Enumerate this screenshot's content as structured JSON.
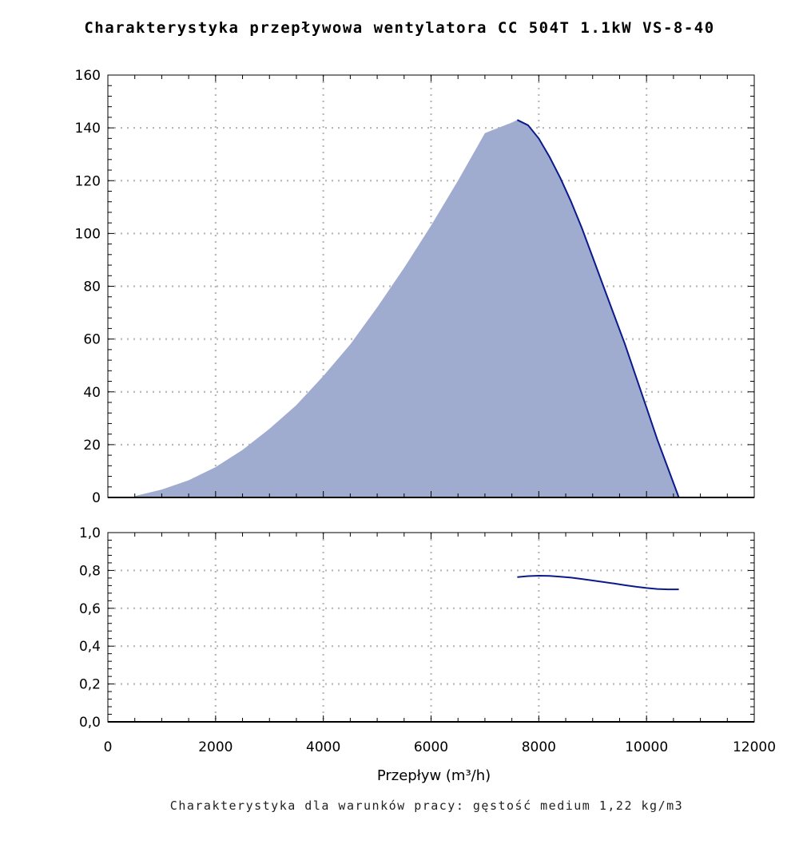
{
  "title": "Charakterystyka przepływowa wentylatora CC 504T 1.1kW VS-8-40",
  "footnote": "Charakterystyka dla warunków pracy: gęstość medium 1,22 kg/m3",
  "colors": {
    "fill": "#9fabcf",
    "line": "#0b1a8a",
    "grid": "#b8b8b8"
  },
  "chart_data": [
    {
      "type": "area",
      "ylim": [
        0,
        160
      ],
      "xlim": [
        0,
        12000
      ],
      "y_ticks": [
        "0",
        "20",
        "40",
        "60",
        "80",
        "100",
        "120",
        "140",
        "160"
      ],
      "y_tick_values": [
        0,
        20,
        40,
        60,
        80,
        100,
        120,
        140,
        160
      ],
      "grid": true,
      "series": [
        {
          "x": [
            500,
            1000,
            1500,
            2000,
            2500,
            3000,
            3500,
            4000,
            4500,
            5000,
            5500,
            6000,
            6500,
            7000,
            7500,
            7600,
            7800,
            8000,
            8200,
            8400,
            8600,
            8800,
            9000,
            9200,
            9400,
            9600,
            9800,
            10000,
            10200,
            10400,
            10600
          ],
          "y": [
            0.5,
            3,
            6.5,
            11.5,
            18,
            26,
            35,
            46,
            58,
            72,
            87,
            103,
            120,
            138,
            142,
            143,
            141,
            136,
            129,
            121,
            112,
            102,
            91,
            80,
            69,
            58,
            46,
            34,
            22,
            11,
            0
          ]
        }
      ]
    },
    {
      "type": "line",
      "ylim": [
        0,
        1.0
      ],
      "xlim": [
        0,
        12000
      ],
      "y_ticks": [
        "0,0",
        "0,2",
        "0,4",
        "0,6",
        "0,8",
        "1,0"
      ],
      "y_tick_values": [
        0,
        0.2,
        0.4,
        0.6,
        0.8,
        1.0
      ],
      "x_ticks": [
        "0",
        "2000",
        "4000",
        "6000",
        "8000",
        "10000",
        "12000"
      ],
      "x_tick_values": [
        0,
        2000,
        4000,
        6000,
        8000,
        10000,
        12000
      ],
      "xlabel": "Przepływ (m³/h)",
      "grid": true,
      "series": [
        {
          "x": [
            7600,
            7800,
            8000,
            8200,
            8400,
            8600,
            8800,
            9000,
            9200,
            9400,
            9600,
            9800,
            10000,
            10200,
            10400,
            10600
          ],
          "y": [
            0.765,
            0.77,
            0.772,
            0.771,
            0.767,
            0.762,
            0.755,
            0.747,
            0.739,
            0.731,
            0.722,
            0.714,
            0.707,
            0.702,
            0.7,
            0.7
          ]
        }
      ]
    }
  ],
  "side_marks": [
    "(",
    "(",
    "("
  ]
}
